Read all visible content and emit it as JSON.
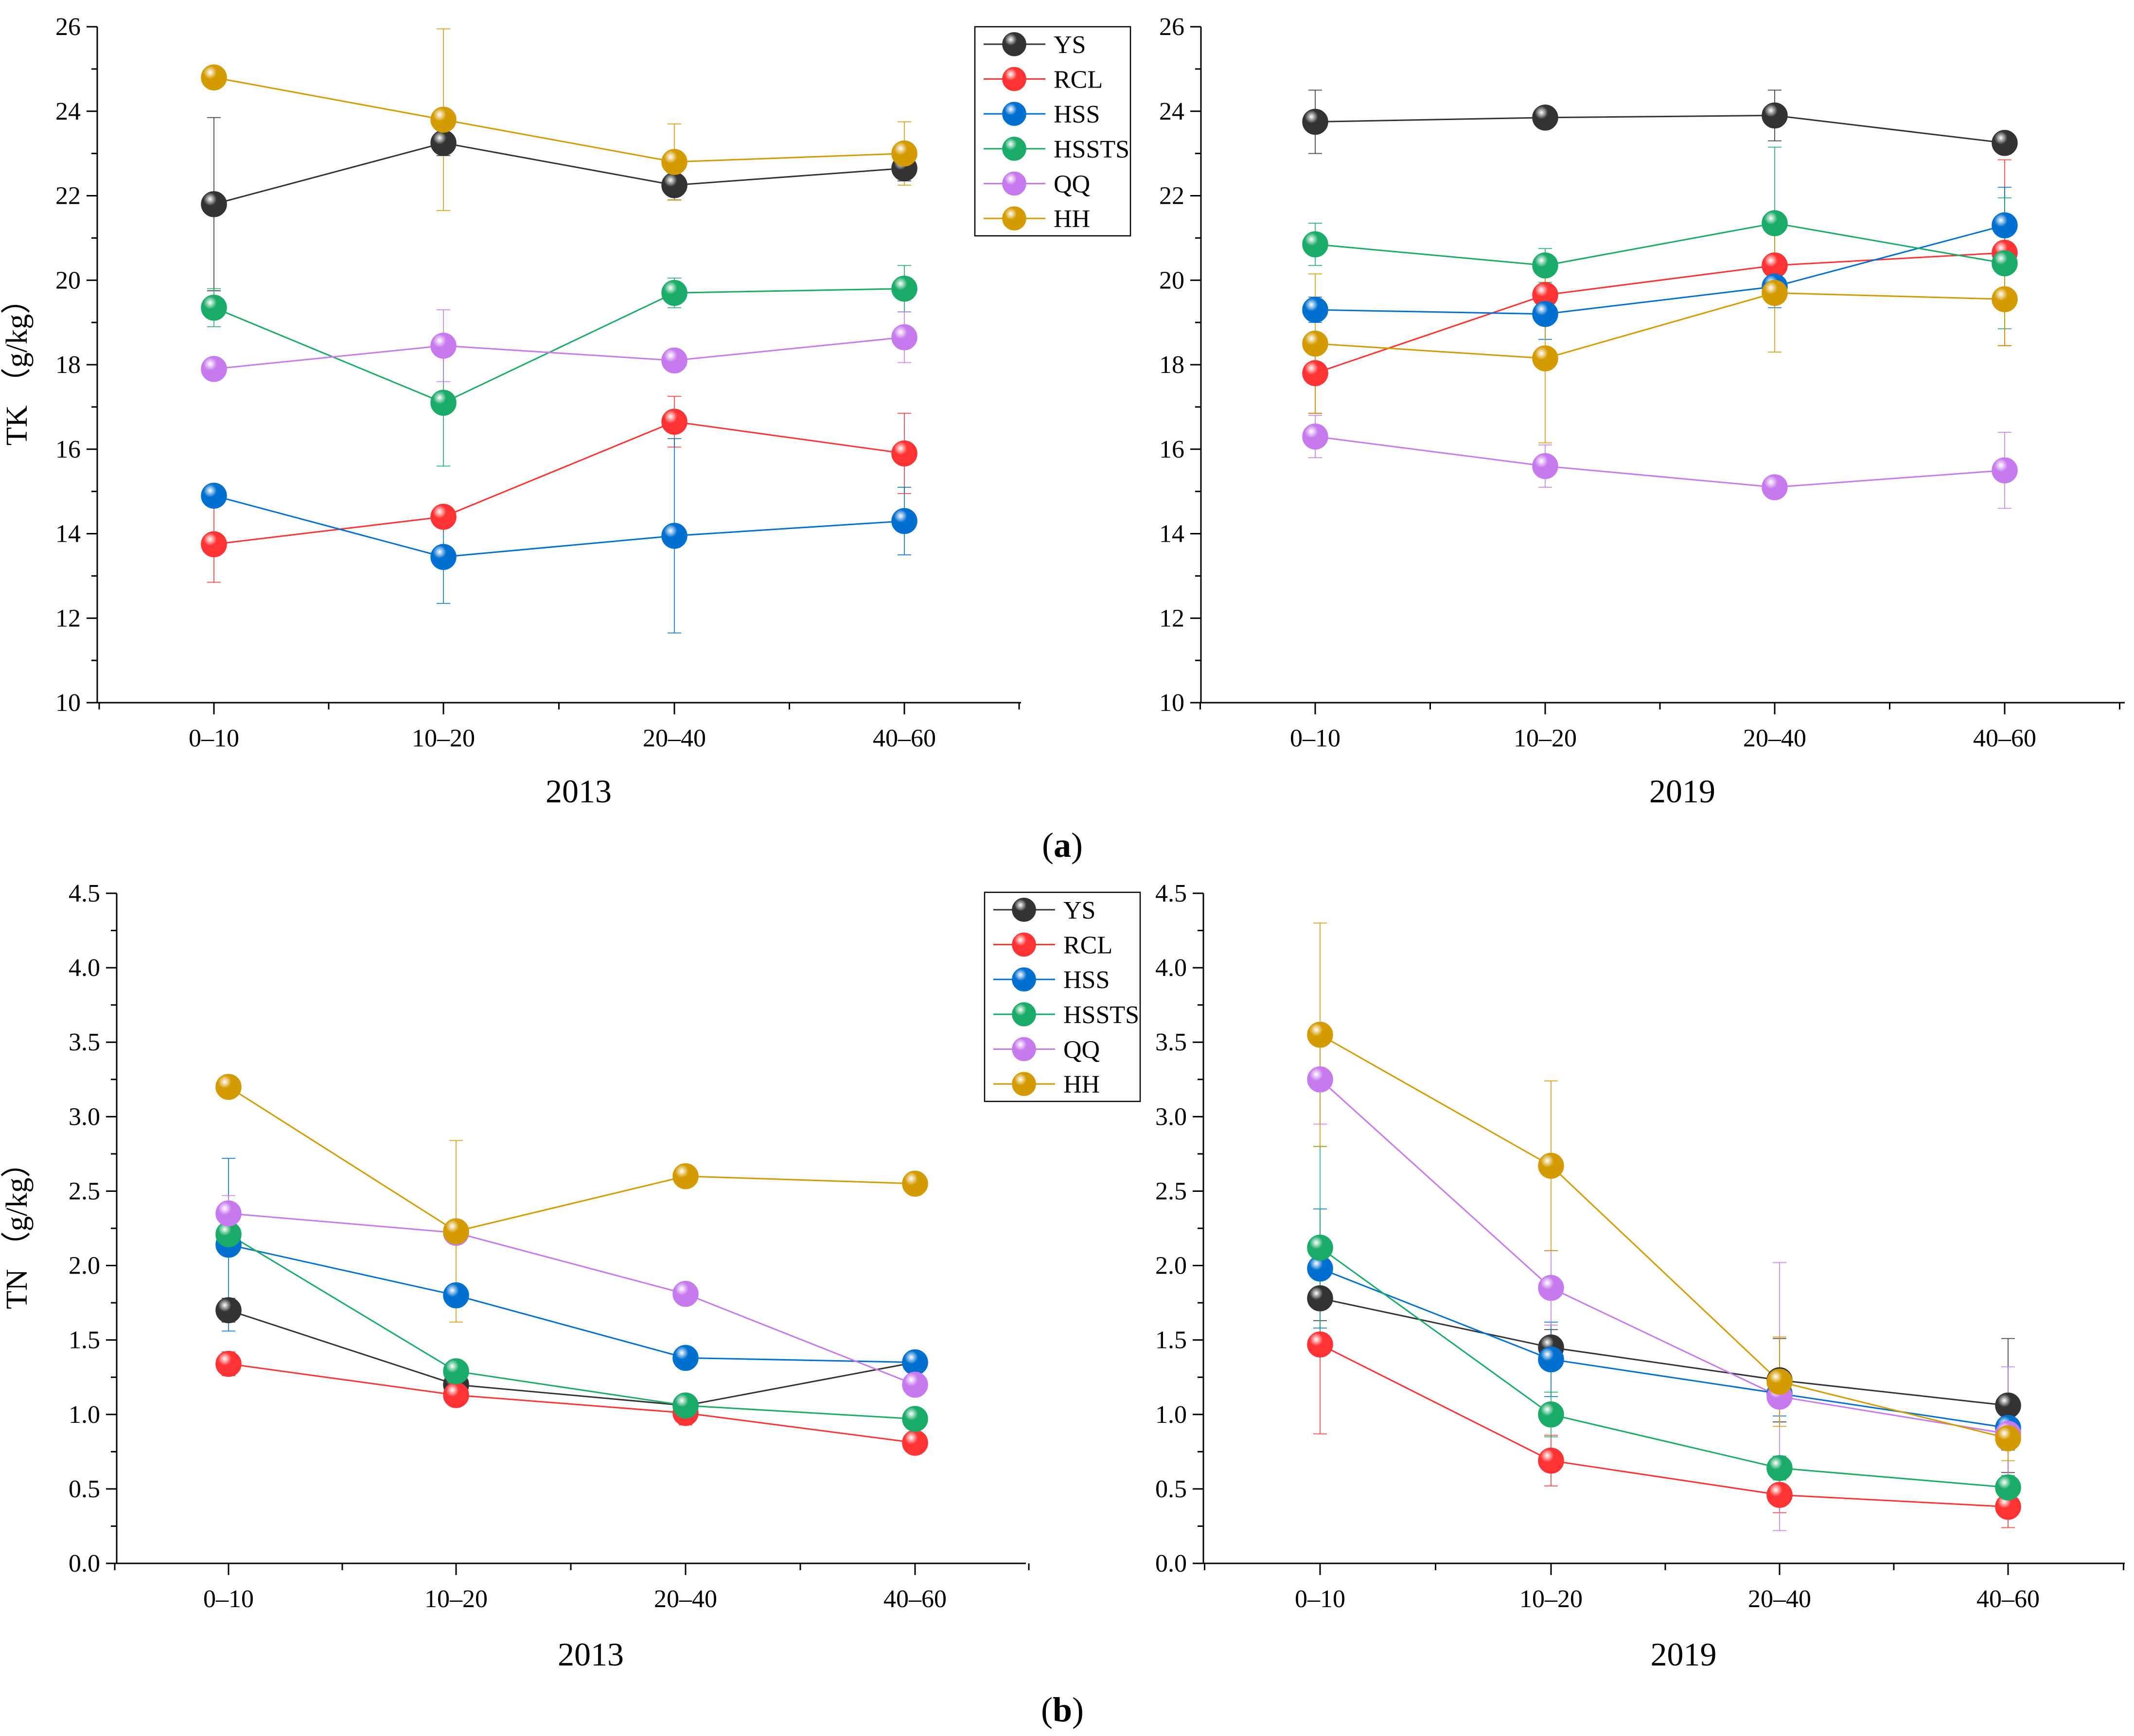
{
  "chart_data": [
    {
      "type": "line",
      "panel": "a",
      "year": "2013",
      "ylabel": "TK （g/kg）",
      "xlabel": "2013",
      "categories": [
        "0–10",
        "10–20",
        "20–40",
        "40–60"
      ],
      "ylim": [
        10,
        26
      ],
      "yticks": [
        "10",
        "12",
        "14",
        "16",
        "18",
        "20",
        "22",
        "24",
        "26"
      ],
      "show_legend": true,
      "series": [
        {
          "name": "YS",
          "color": "#333333",
          "values": [
            21.8,
            23.25,
            22.25,
            22.65
          ],
          "errors": [
            2.05,
            0.3,
            0.35,
            0.3
          ]
        },
        {
          "name": "RCL",
          "color": "#ff3333",
          "values": [
            13.75,
            14.4,
            16.65,
            15.9
          ],
          "errors": [
            0.9,
            0.25,
            0.6,
            0.95
          ]
        },
        {
          "name": "HSS",
          "color": "#0070d0",
          "values": [
            14.9,
            13.45,
            13.95,
            14.3
          ],
          "errors": [
            0.2,
            1.1,
            2.3,
            0.8
          ]
        },
        {
          "name": "HSSTS",
          "color": "#1aab68",
          "values": [
            19.35,
            17.1,
            19.7,
            19.8
          ],
          "errors": [
            0.45,
            1.5,
            0.35,
            0.55
          ]
        },
        {
          "name": "QQ",
          "color": "#c77aee",
          "values": [
            17.9,
            18.45,
            18.1,
            18.65
          ],
          "errors": [
            0.1,
            0.85,
            0.15,
            0.6
          ]
        },
        {
          "name": "HH",
          "color": "#d49b00",
          "values": [
            24.8,
            23.8,
            22.8,
            23.0
          ],
          "errors": [
            0.15,
            2.15,
            0.9,
            0.75
          ]
        }
      ]
    },
    {
      "type": "line",
      "panel": "a",
      "year": "2019",
      "ylabel": "",
      "xlabel": "2019",
      "categories": [
        "0–10",
        "10–20",
        "20–40",
        "40–60"
      ],
      "ylim": [
        10,
        26
      ],
      "yticks": [
        "10",
        "12",
        "14",
        "16",
        "18",
        "20",
        "22",
        "24",
        "26"
      ],
      "show_legend": false,
      "series": [
        {
          "name": "YS",
          "color": "#333333",
          "values": [
            23.75,
            23.85,
            23.9,
            23.25
          ],
          "errors": [
            0.75,
            0.15,
            0.6,
            0.15
          ]
        },
        {
          "name": "RCL",
          "color": "#ff3333",
          "values": [
            17.8,
            19.65,
            20.35,
            20.65
          ],
          "errors": [
            0.95,
            0.55,
            0.2,
            2.2
          ]
        },
        {
          "name": "HSS",
          "color": "#0070d0",
          "values": [
            19.3,
            19.2,
            19.85,
            21.3
          ],
          "errors": [
            0.3,
            0.6,
            0.5,
            0.9
          ]
        },
        {
          "name": "HSSTS",
          "color": "#1aab68",
          "values": [
            20.85,
            20.35,
            21.35,
            20.4
          ],
          "errors": [
            0.5,
            0.4,
            1.8,
            1.55
          ]
        },
        {
          "name": "QQ",
          "color": "#c77aee",
          "values": [
            16.3,
            15.6,
            15.1,
            15.5
          ],
          "errors": [
            0.5,
            0.5,
            0.2,
            0.9
          ]
        },
        {
          "name": "HH",
          "color": "#d49b00",
          "values": [
            18.5,
            18.15,
            19.7,
            19.55
          ],
          "errors": [
            1.65,
            2.0,
            1.4,
            1.1
          ]
        }
      ]
    },
    {
      "type": "line",
      "panel": "b",
      "year": "2013",
      "ylabel": "TN （g/kg）",
      "xlabel": "2013",
      "categories": [
        "0–10",
        "10–20",
        "20–40",
        "40–60"
      ],
      "ylim": [
        0,
        4.5
      ],
      "yticks": [
        "0.0",
        "0.5",
        "1.0",
        "1.5",
        "2.0",
        "2.5",
        "3.0",
        "3.5",
        "4.0",
        "4.5"
      ],
      "show_legend": true,
      "series": [
        {
          "name": "YS",
          "color": "#333333",
          "values": [
            1.7,
            1.2,
            1.06,
            1.35
          ],
          "errors": [
            0.08,
            0.06,
            0.05,
            0.05
          ]
        },
        {
          "name": "RCL",
          "color": "#ff3333",
          "values": [
            1.34,
            1.13,
            1.01,
            0.81
          ],
          "errors": [
            0.08,
            0.06,
            0.08,
            0.04
          ]
        },
        {
          "name": "HSS",
          "color": "#0070d0",
          "values": [
            2.14,
            1.8,
            1.38,
            1.35
          ],
          "errors": [
            0.58,
            0.05,
            0.05,
            0.05
          ]
        },
        {
          "name": "HSSTS",
          "color": "#1aab68",
          "values": [
            2.21,
            1.29,
            1.06,
            0.97
          ],
          "errors": [
            0.08,
            0.05,
            0.05,
            0.04
          ]
        },
        {
          "name": "QQ",
          "color": "#c77aee",
          "values": [
            2.35,
            2.22,
            1.81,
            1.2
          ],
          "errors": [
            0.12,
            0.05,
            0.04,
            0.04
          ]
        },
        {
          "name": "HH",
          "color": "#d49b00",
          "values": [
            3.2,
            2.23,
            2.6,
            2.55
          ],
          "errors": [
            0.04,
            0.61,
            0.04,
            0.04
          ]
        }
      ]
    },
    {
      "type": "line",
      "panel": "b",
      "year": "2019",
      "ylabel": "",
      "xlabel": "2019",
      "categories": [
        "0–10",
        "10–20",
        "20–40",
        "40–60"
      ],
      "ylim": [
        0,
        4.5
      ],
      "yticks": [
        "0.0",
        "0.5",
        "1.0",
        "1.5",
        "2.0",
        "2.5",
        "3.0",
        "3.5",
        "4.0",
        "4.5"
      ],
      "show_legend": false,
      "series": [
        {
          "name": "YS",
          "color": "#333333",
          "values": [
            1.78,
            1.45,
            1.23,
            1.06
          ],
          "errors": [
            0.15,
            0.12,
            0.28,
            0.45
          ]
        },
        {
          "name": "RCL",
          "color": "#ff3333",
          "values": [
            1.47,
            0.69,
            0.46,
            0.38
          ],
          "errors": [
            0.6,
            0.17,
            0.12,
            0.14
          ]
        },
        {
          "name": "HSS",
          "color": "#0070d0",
          "values": [
            1.98,
            1.37,
            1.14,
            0.91
          ],
          "errors": [
            0.4,
            0.25,
            0.15,
            0.15
          ]
        },
        {
          "name": "HSSTS",
          "color": "#1aab68",
          "values": [
            2.12,
            1.0,
            0.64,
            0.51
          ],
          "errors": [
            0.68,
            0.15,
            0.08,
            0.08
          ]
        },
        {
          "name": "QQ",
          "color": "#c77aee",
          "values": [
            3.25,
            1.85,
            1.12,
            0.87
          ],
          "errors": [
            0.3,
            0.25,
            0.9,
            0.45
          ]
        },
        {
          "name": "HH",
          "color": "#d49b00",
          "values": [
            3.55,
            2.67,
            1.22,
            0.84
          ],
          "errors": [
            0.75,
            0.57,
            0.3,
            0.15
          ]
        }
      ]
    }
  ],
  "captions": {
    "a": {
      "open": "(",
      "letter": "a",
      "close": ")"
    },
    "b": {
      "open": "(",
      "letter": "b",
      "close": ")"
    }
  }
}
